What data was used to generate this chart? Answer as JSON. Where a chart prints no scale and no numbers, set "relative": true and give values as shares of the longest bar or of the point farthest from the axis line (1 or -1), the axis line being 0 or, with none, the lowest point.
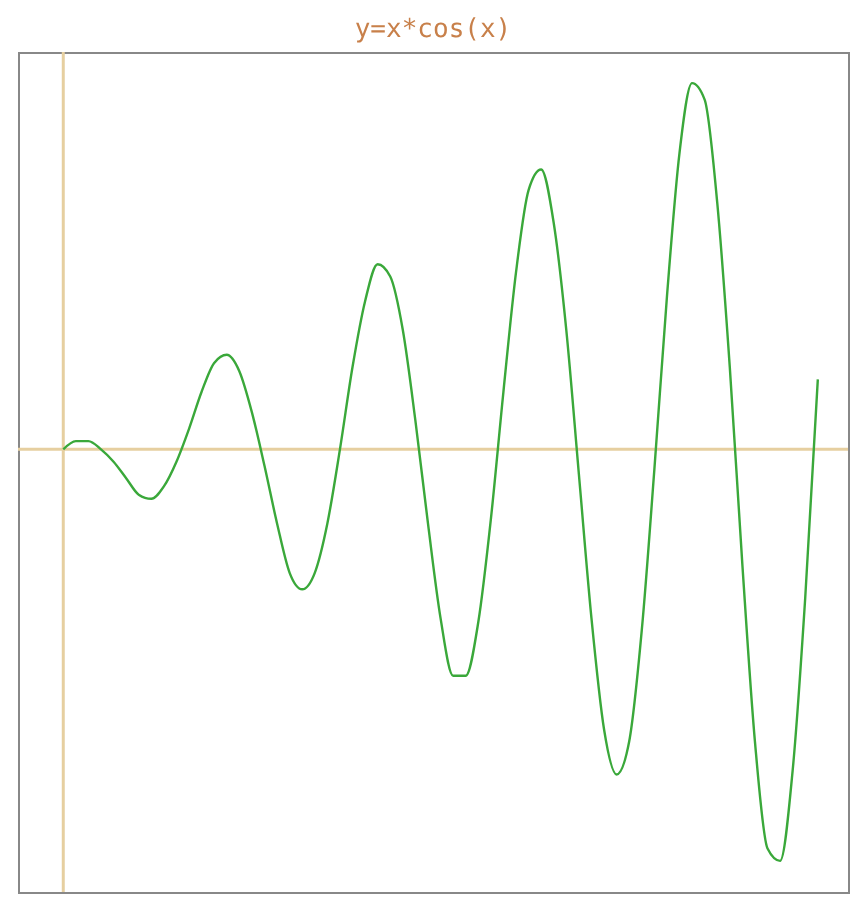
{
  "chart_data": {
    "type": "line",
    "title": "y=x*cos(x)",
    "relative": true,
    "tick_labels": false,
    "grid": false,
    "ref_lines": [
      {
        "axis": "y",
        "value": 0,
        "color": "#e6cfa0"
      }
    ],
    "marker": "none",
    "line_style": "solid",
    "categories": [
      null,
      null,
      null,
      null,
      null,
      null,
      null,
      null,
      null,
      null,
      null,
      null,
      null,
      null,
      null,
      null,
      null,
      null,
      null,
      null,
      null,
      null,
      null,
      null,
      null,
      null,
      null,
      null,
      null,
      null,
      null,
      null,
      null,
      null,
      null,
      null,
      null,
      null,
      null,
      null,
      null,
      null,
      null,
      null,
      null,
      null,
      null,
      null,
      null,
      null,
      null,
      null,
      null,
      null,
      null,
      null,
      null,
      null,
      null,
      null,
      null
    ],
    "series": [
      {
        "color": "#3aa83a",
        "values": [
          0,
          0.02,
          0.02,
          0.0,
          -0.03,
          -0.07,
          -0.11,
          -0.12,
          -0.09,
          -0.03,
          0.05,
          0.14,
          0.21,
          0.23,
          0.19,
          0.09,
          -0.04,
          -0.18,
          -0.3,
          -0.34,
          -0.3,
          -0.18,
          0.0,
          0.2,
          0.36,
          0.45,
          0.42,
          0.29,
          0.07,
          -0.18,
          -0.41,
          -0.55,
          -0.55,
          -0.42,
          -0.17,
          0.14,
          0.43,
          0.63,
          0.68,
          0.55,
          0.29,
          -0.06,
          -0.41,
          -0.68,
          -0.79,
          -0.71,
          -0.44,
          -0.05,
          0.37,
          0.72,
          0.89,
          0.85,
          0.6,
          0.2,
          -0.28,
          -0.71,
          -0.97,
          -1,
          -0.78,
          -0.36,
          0.17
        ]
      }
    ]
  }
}
